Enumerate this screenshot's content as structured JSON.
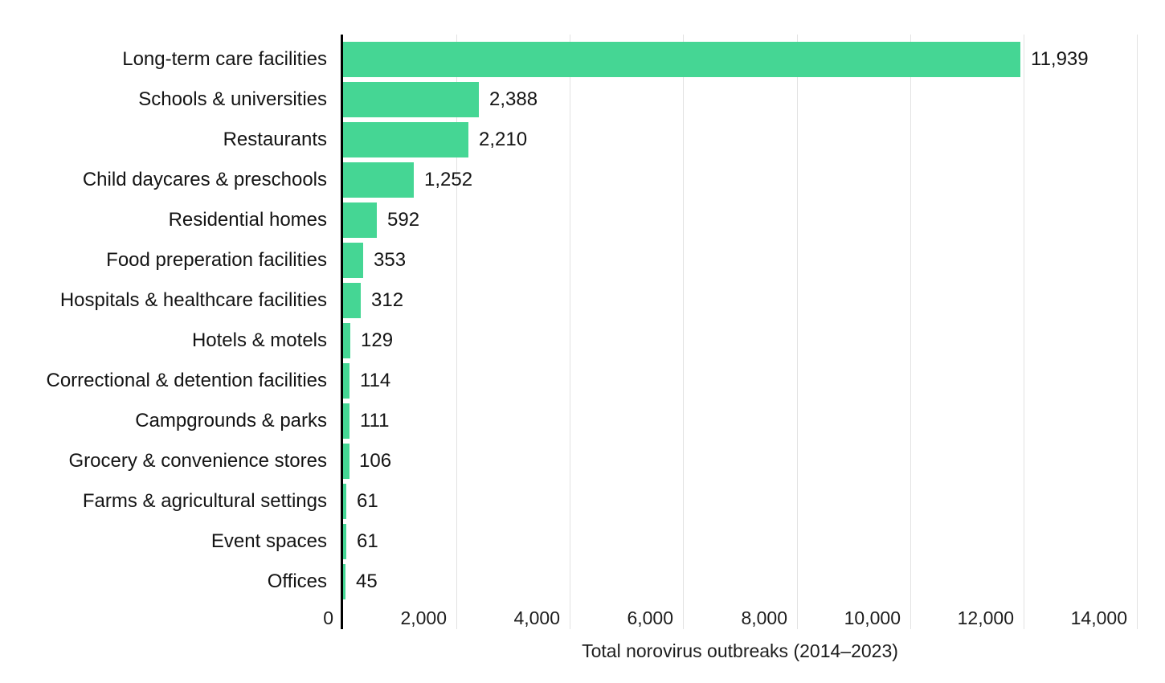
{
  "chart_data": {
    "type": "bar",
    "orientation": "horizontal",
    "title": "",
    "xlabel": "Total norovirus outbreaks (2014–2023)",
    "ylabel": "",
    "xlim": [
      0,
      14000
    ],
    "grid": "vertical",
    "legend": "none",
    "categories": [
      "Long-term care facilities",
      "Schools & universities",
      "Restaurants",
      "Child daycares & preschools",
      "Residential homes",
      "Food preperation facilities",
      "Hospitals & healthcare facilities",
      "Hotels & motels",
      "Correctional & detention facilities",
      "Campgrounds & parks",
      "Grocery & convenience stores",
      "Farms & agricultural settings",
      "Event spaces",
      "Offices"
    ],
    "values": [
      11939,
      2388,
      2210,
      1252,
      592,
      353,
      312,
      129,
      114,
      111,
      106,
      61,
      61,
      45
    ],
    "value_labels": [
      "11,939",
      "2,388",
      "2,210",
      "1,252",
      "592",
      "353",
      "312",
      "129",
      "114",
      "111",
      "106",
      "61",
      "61",
      "45"
    ],
    "x_ticks": [
      0,
      2000,
      4000,
      6000,
      8000,
      10000,
      12000,
      14000
    ],
    "x_tick_labels": [
      "0",
      "2,000",
      "4,000",
      "6,000",
      "8,000",
      "10,000",
      "12,000",
      "14,000"
    ],
    "colors": {
      "bar": "#45d694",
      "axis_line": "#000000",
      "gridline": "#e2e2e2",
      "label_text": "#141414",
      "tick_text": "#1d1d1d",
      "background": "#ffffff"
    }
  }
}
